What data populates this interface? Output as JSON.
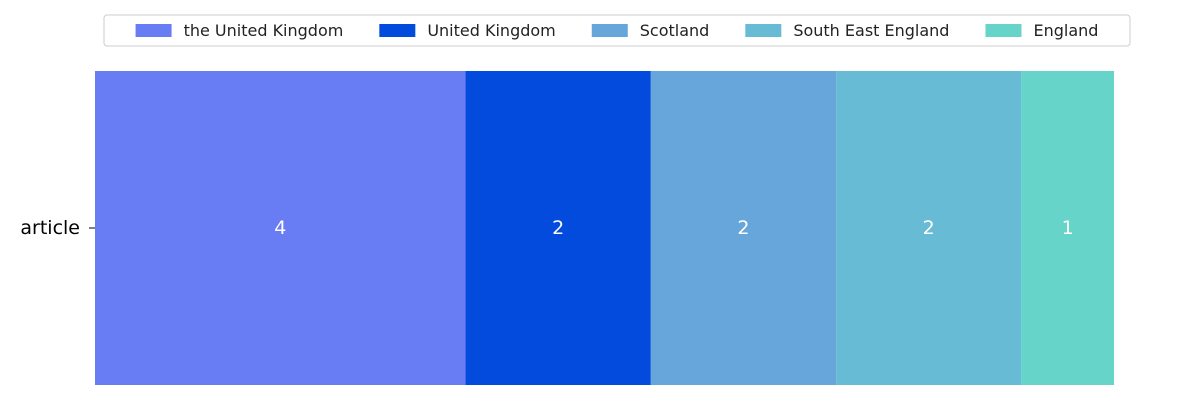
{
  "chart_data": {
    "type": "bar",
    "orientation": "horizontal",
    "stacked": true,
    "categories": [
      "article"
    ],
    "series": [
      {
        "name": "the United Kingdom",
        "values": [
          4
        ],
        "color": "#687cf4"
      },
      {
        "name": "United Kingdom",
        "values": [
          2
        ],
        "color": "#024bdd"
      },
      {
        "name": "Scotland",
        "values": [
          2
        ],
        "color": "#66a6da"
      },
      {
        "name": "South East England",
        "values": [
          2
        ],
        "color": "#67bbd5"
      },
      {
        "name": "England",
        "values": [
          1
        ],
        "color": "#67d4ca"
      }
    ],
    "xlim": [
      0,
      11
    ],
    "title": "",
    "xlabel": "",
    "ylabel": "",
    "legend": "top-center",
    "grid": false
  }
}
